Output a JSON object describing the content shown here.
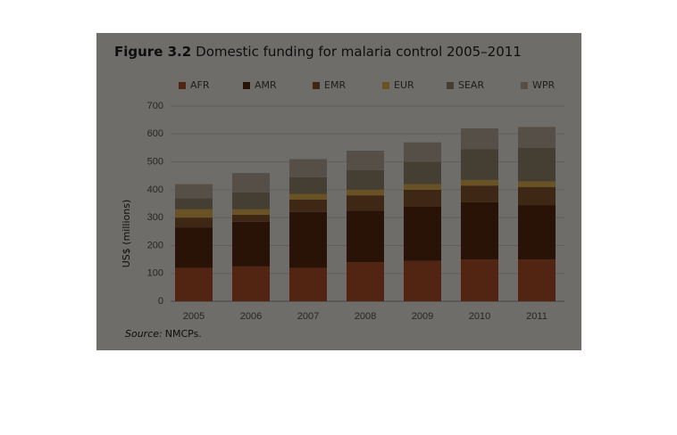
{
  "chart_data": {
    "type": "stacked-bar",
    "figure_label": "Figure 3.2",
    "title": "Domestic funding for malaria control 2005–2011",
    "y_label": "US$ (millions)",
    "source_label": "Source:",
    "source": "NMCPs.",
    "categories": [
      "2005",
      "2006",
      "2007",
      "2008",
      "2009",
      "2010",
      "2011"
    ],
    "series": [
      {
        "name": "AFR",
        "color": "#b5532a",
        "values": [
          120,
          125,
          120,
          140,
          145,
          150,
          150
        ]
      },
      {
        "name": "AMR",
        "color": "#5c2c10",
        "values": [
          145,
          160,
          200,
          185,
          195,
          205,
          195
        ]
      },
      {
        "name": "EMR",
        "color": "#8a5a30",
        "values": [
          35,
          25,
          45,
          55,
          60,
          60,
          65
        ]
      },
      {
        "name": "EUR",
        "color": "#e8b850",
        "values": [
          30,
          20,
          20,
          20,
          20,
          20,
          20
        ]
      },
      {
        "name": "SEAR",
        "color": "#9a8a70",
        "values": [
          40,
          60,
          60,
          70,
          80,
          110,
          120
        ]
      },
      {
        "name": "WPR",
        "color": "#bdb0a0",
        "values": [
          50,
          70,
          65,
          70,
          70,
          75,
          75
        ]
      }
    ],
    "ylim": [
      0,
      700
    ],
    "yticks": [
      0,
      100,
      200,
      300,
      400,
      500,
      600,
      700
    ],
    "grid": true
  }
}
